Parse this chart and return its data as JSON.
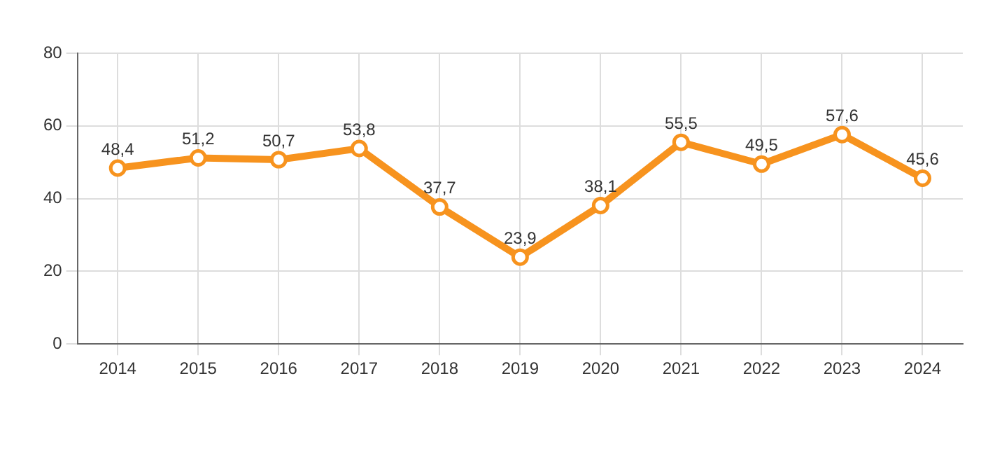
{
  "chart_data": {
    "type": "line",
    "categories": [
      "2014",
      "2015",
      "2016",
      "2017",
      "2018",
      "2019",
      "2020",
      "2021",
      "2022",
      "2023",
      "2024"
    ],
    "series": [
      {
        "color": "#f7931e",
        "values": [
          48.4,
          51.2,
          50.7,
          53.8,
          37.7,
          23.9,
          38.1,
          55.5,
          49.5,
          57.6,
          45.6
        ],
        "value_labels": [
          "48,4",
          "51,2",
          "50,7",
          "53,8",
          "37,7",
          "23,9",
          "38,1",
          "55,5",
          "49,5",
          "57,6",
          "45,6"
        ]
      }
    ],
    "ylim": [
      0,
      80
    ],
    "yticks": [
      0,
      20,
      40,
      60,
      80
    ],
    "grid": true,
    "legend": false,
    "marker": "circle",
    "line_style": "solid"
  }
}
